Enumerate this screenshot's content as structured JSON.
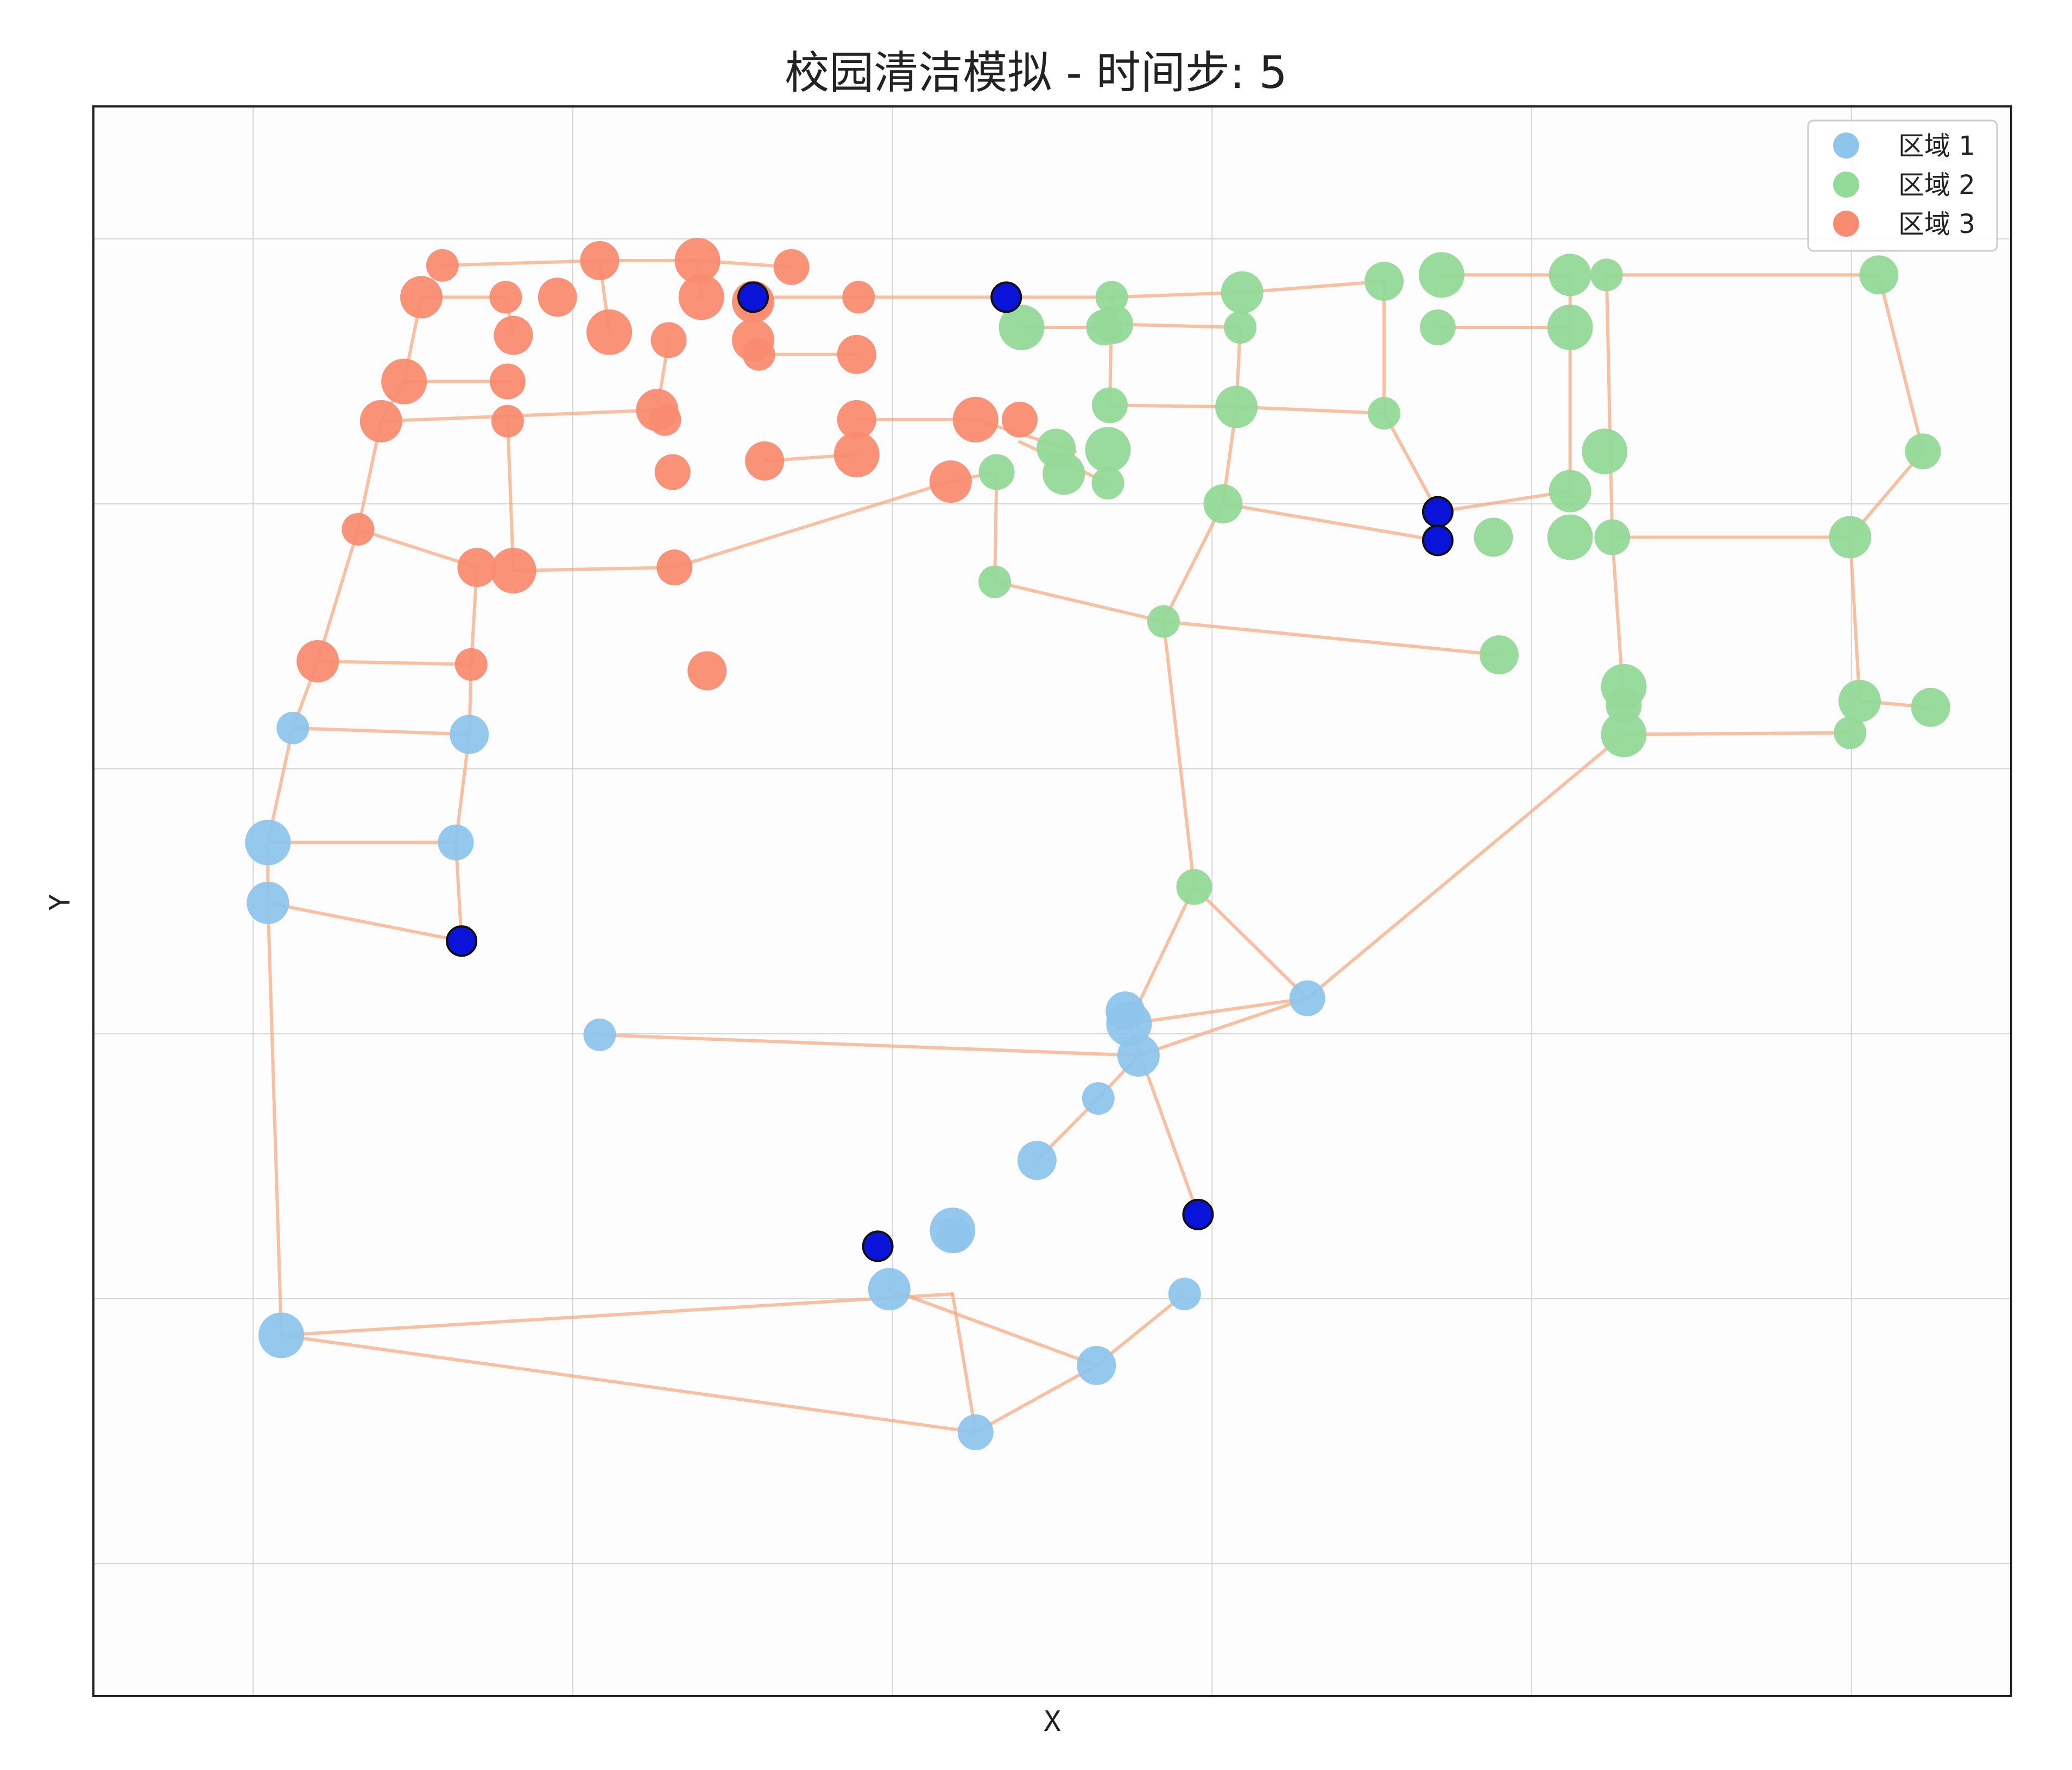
{
  "chart_data": {
    "type": "scatter",
    "title": "校园清洁模拟 - 时间步: 5",
    "xlabel": "X",
    "ylabel": "Y",
    "xlim": [
      0,
      100
    ],
    "ylim": [
      0,
      100
    ],
    "grid": true,
    "legend_position": "top-right",
    "colors": {
      "zone1": "#8ec5ec",
      "zone2": "#93d997",
      "zone3": "#f98c70",
      "edge": "#f7a982",
      "agent": "#0a14d8",
      "grid": "#d6d6d6"
    },
    "series": [
      {
        "name": "区域 1",
        "key": "zone1",
        "points": [
          [
            10.4,
            60.9
          ],
          [
            19.6,
            60.5
          ],
          [
            9.1,
            53.7
          ],
          [
            18.9,
            53.7
          ],
          [
            9.1,
            49.9
          ],
          [
            26.4,
            41.6
          ],
          [
            53.8,
            43.1
          ],
          [
            54.0,
            42.3
          ],
          [
            63.3,
            43.9
          ],
          [
            54.5,
            40.3
          ],
          [
            52.4,
            37.6
          ],
          [
            49.2,
            33.7
          ],
          [
            44.8,
            29.3
          ],
          [
            44.9,
            29.0
          ],
          [
            41.5,
            25.6
          ],
          [
            56.9,
            25.3
          ],
          [
            52.3,
            20.8
          ],
          [
            9.8,
            22.7
          ],
          [
            46.0,
            16.6
          ]
        ]
      },
      {
        "name": "区域 2",
        "key": "zone2",
        "points": [
          [
            53.1,
            88.0
          ],
          [
            53.2,
            86.3
          ],
          [
            48.4,
            86.1
          ],
          [
            52.7,
            86.1
          ],
          [
            59.9,
            88.3
          ],
          [
            59.8,
            86.1
          ],
          [
            67.3,
            89.0
          ],
          [
            70.3,
            89.4
          ],
          [
            70.1,
            86.1
          ],
          [
            77.0,
            89.4
          ],
          [
            78.9,
            89.4
          ],
          [
            93.1,
            89.4
          ],
          [
            77.0,
            86.1
          ],
          [
            53.0,
            81.2
          ],
          [
            59.6,
            81.1
          ],
          [
            67.3,
            80.7
          ],
          [
            50.2,
            78.5
          ],
          [
            52.9,
            78.4
          ],
          [
            47.1,
            77.0
          ],
          [
            50.6,
            76.9
          ],
          [
            52.9,
            76.3
          ],
          [
            58.9,
            75.0
          ],
          [
            78.8,
            78.3
          ],
          [
            95.4,
            78.3
          ],
          [
            77.0,
            75.8
          ],
          [
            47.0,
            70.1
          ],
          [
            73.0,
            72.9
          ],
          [
            77.0,
            72.9
          ],
          [
            79.2,
            72.9
          ],
          [
            91.6,
            72.9
          ],
          [
            55.8,
            67.6
          ],
          [
            73.3,
            65.5
          ],
          [
            79.8,
            63.5
          ],
          [
            79.8,
            62.3
          ],
          [
            92.1,
            62.6
          ],
          [
            91.6,
            60.6
          ],
          [
            95.8,
            62.2
          ],
          [
            79.8,
            60.5
          ],
          [
            57.4,
            50.9
          ]
        ]
      },
      {
        "name": "区域 3",
        "key": "zone3",
        "points": [
          [
            18.2,
            90.0
          ],
          [
            26.4,
            90.3
          ],
          [
            31.5,
            90.3
          ],
          [
            36.4,
            89.9
          ],
          [
            17.1,
            88.0
          ],
          [
            21.5,
            88.0
          ],
          [
            24.2,
            88.0
          ],
          [
            31.7,
            88.0
          ],
          [
            34.5,
            87.8
          ],
          [
            34.4,
            87.7
          ],
          [
            39.9,
            88.0
          ],
          [
            21.9,
            85.6
          ],
          [
            26.9,
            85.8
          ],
          [
            30.0,
            85.3
          ],
          [
            34.4,
            85.3
          ],
          [
            34.7,
            84.4
          ],
          [
            39.8,
            84.4
          ],
          [
            16.2,
            82.7
          ],
          [
            21.6,
            82.7
          ],
          [
            29.4,
            80.9
          ],
          [
            29.8,
            80.3
          ],
          [
            39.8,
            80.3
          ],
          [
            46.0,
            80.3
          ],
          [
            48.3,
            80.3
          ],
          [
            15.0,
            80.2
          ],
          [
            21.6,
            80.2
          ],
          [
            35.0,
            77.7
          ],
          [
            39.8,
            78.1
          ],
          [
            30.2,
            77.0
          ],
          [
            44.7,
            76.4
          ],
          [
            13.8,
            73.4
          ],
          [
            20.0,
            71.0
          ],
          [
            21.9,
            70.8
          ],
          [
            30.3,
            71.0
          ],
          [
            11.7,
            65.1
          ],
          [
            19.7,
            64.9
          ],
          [
            32.0,
            64.5
          ]
        ]
      }
    ],
    "agents": [
      [
        34.4,
        88.0
      ],
      [
        47.6,
        88.0
      ],
      [
        70.1,
        74.5
      ],
      [
        70.1,
        72.7
      ],
      [
        19.2,
        47.5
      ],
      [
        57.6,
        30.3
      ],
      [
        40.9,
        28.3
      ]
    ],
    "edges": [
      [
        26.4,
        90.3,
        31.5,
        90.3
      ],
      [
        31.5,
        90.3,
        36.4,
        89.9
      ],
      [
        18.2,
        90.0,
        26.4,
        90.3
      ],
      [
        17.1,
        88.0,
        21.5,
        88.0
      ],
      [
        26.4,
        90.3,
        26.9,
        85.8
      ],
      [
        31.5,
        90.3,
        31.7,
        88.0
      ],
      [
        34.4,
        88.0,
        39.9,
        88.0
      ],
      [
        39.9,
        88.0,
        47.6,
        88.0
      ],
      [
        47.6,
        88.0,
        53.1,
        88.0
      ],
      [
        53.1,
        88.0,
        59.9,
        88.3
      ],
      [
        59.9,
        88.3,
        67.3,
        89.0
      ],
      [
        70.3,
        89.4,
        77.0,
        89.4
      ],
      [
        78.9,
        89.4,
        93.1,
        89.4
      ],
      [
        70.1,
        86.1,
        77.0,
        86.1
      ],
      [
        77.0,
        89.4,
        77.0,
        75.8
      ],
      [
        78.9,
        89.4,
        79.2,
        72.9
      ],
      [
        93.1,
        89.4,
        95.4,
        78.3
      ],
      [
        95.4,
        78.3,
        91.6,
        72.9
      ],
      [
        53.2,
        86.3,
        59.8,
        86.1
      ],
      [
        48.4,
        86.1,
        53.2,
        86.1
      ],
      [
        59.8,
        86.1,
        59.6,
        81.1
      ],
      [
        53.1,
        88.0,
        53.0,
        81.2
      ],
      [
        53.0,
        81.2,
        59.6,
        81.1
      ],
      [
        59.6,
        81.1,
        67.3,
        80.7
      ],
      [
        67.3,
        89.0,
        67.3,
        80.7
      ],
      [
        67.3,
        80.7,
        70.1,
        74.5
      ],
      [
        70.1,
        74.5,
        77.0,
        75.8
      ],
      [
        59.6,
        81.1,
        58.9,
        75.0
      ],
      [
        58.9,
        75.0,
        70.1,
        72.7
      ],
      [
        58.9,
        75.0,
        55.8,
        67.6
      ],
      [
        47.1,
        77.0,
        47.0,
        70.1
      ],
      [
        47.0,
        70.1,
        55.8,
        67.6
      ],
      [
        55.8,
        67.6,
        73.3,
        65.5
      ],
      [
        55.8,
        67.6,
        57.4,
        50.9
      ],
      [
        57.4,
        50.9,
        63.3,
        43.9
      ],
      [
        57.4,
        50.9,
        54.0,
        42.3
      ],
      [
        54.0,
        42.3,
        63.3,
        43.9
      ],
      [
        63.3,
        43.9,
        79.8,
        60.5
      ],
      [
        79.8,
        60.5,
        91.6,
        60.6
      ],
      [
        79.2,
        72.9,
        91.6,
        72.9
      ],
      [
        91.6,
        72.9,
        92.1,
        62.6
      ],
      [
        92.1,
        62.6,
        95.8,
        62.2
      ],
      [
        79.2,
        72.9,
        79.8,
        62.3
      ],
      [
        46.0,
        80.3,
        51.2,
        78.3
      ],
      [
        48.3,
        78.9,
        52.9,
        76.3
      ],
      [
        44.7,
        76.4,
        47.1,
        77.0
      ],
      [
        39.8,
        80.3,
        46.0,
        80.3
      ],
      [
        35.0,
        77.7,
        39.8,
        78.1
      ],
      [
        39.8,
        84.4,
        34.7,
        84.4
      ],
      [
        30.0,
        85.3,
        29.4,
        80.9
      ],
      [
        21.5,
        88.0,
        21.9,
        85.6
      ],
      [
        16.2,
        82.7,
        21.6,
        82.7
      ],
      [
        15.0,
        80.2,
        29.4,
        80.9
      ],
      [
        17.1,
        88.0,
        16.2,
        82.7
      ],
      [
        16.2,
        82.7,
        15.0,
        80.2
      ],
      [
        15.0,
        80.2,
        13.8,
        73.4
      ],
      [
        13.8,
        73.4,
        11.7,
        65.1
      ],
      [
        11.7,
        65.1,
        10.4,
        60.9
      ],
      [
        10.4,
        60.9,
        9.1,
        53.7
      ],
      [
        9.1,
        53.7,
        9.1,
        49.9
      ],
      [
        9.1,
        49.9,
        9.8,
        22.7
      ],
      [
        13.8,
        73.4,
        20.0,
        71.0
      ],
      [
        21.6,
        80.2,
        21.9,
        70.8
      ],
      [
        20.0,
        71.0,
        19.7,
        64.9
      ],
      [
        19.7,
        64.9,
        19.6,
        60.5
      ],
      [
        19.6,
        60.5,
        18.9,
        53.7
      ],
      [
        18.9,
        53.7,
        19.2,
        47.5
      ],
      [
        9.1,
        49.9,
        19.2,
        47.5
      ],
      [
        11.7,
        65.1,
        19.7,
        64.9
      ],
      [
        10.4,
        60.9,
        19.6,
        60.5
      ],
      [
        9.1,
        53.7,
        18.9,
        53.7
      ],
      [
        21.9,
        70.8,
        30.3,
        71.0
      ],
      [
        30.3,
        71.0,
        44.7,
        76.4
      ],
      [
        26.4,
        41.6,
        54.5,
        40.3
      ],
      [
        54.5,
        40.3,
        63.3,
        43.9
      ],
      [
        54.5,
        40.3,
        52.4,
        37.6
      ],
      [
        54.0,
        42.3,
        57.6,
        30.3
      ],
      [
        9.8,
        22.7,
        44.8,
        25.3
      ],
      [
        9.8,
        22.7,
        46.0,
        16.6
      ],
      [
        44.8,
        25.3,
        46.0,
        16.6
      ],
      [
        41.5,
        25.6,
        52.3,
        20.8
      ],
      [
        52.3,
        20.8,
        56.9,
        25.3
      ],
      [
        46.0,
        16.6,
        52.3,
        20.8
      ],
      [
        52.4,
        37.6,
        49.2,
        33.7
      ]
    ]
  },
  "legend": {
    "items": [
      {
        "label": "区域 1",
        "key": "zone1"
      },
      {
        "label": "区域 2",
        "key": "zone2"
      },
      {
        "label": "区域 3",
        "key": "zone3"
      }
    ]
  }
}
